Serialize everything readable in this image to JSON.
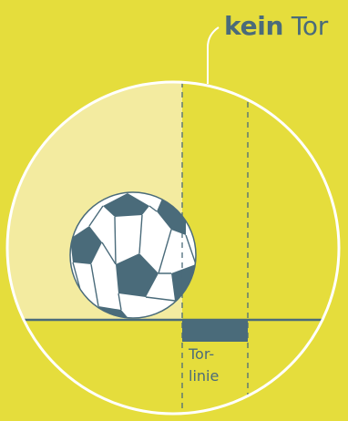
{
  "title": {
    "bold": "kein",
    "regular": "Tor"
  },
  "goal_line_label": {
    "line1": "Tor-",
    "line2": "linie"
  },
  "colors": {
    "background": "#e5dd3c",
    "highlight": "#f3eba0",
    "accent": "#4a6b7a",
    "circle_stroke": "#ffffff",
    "ball_white": "#ffffff",
    "ball_patch": "#4a6b7a"
  }
}
